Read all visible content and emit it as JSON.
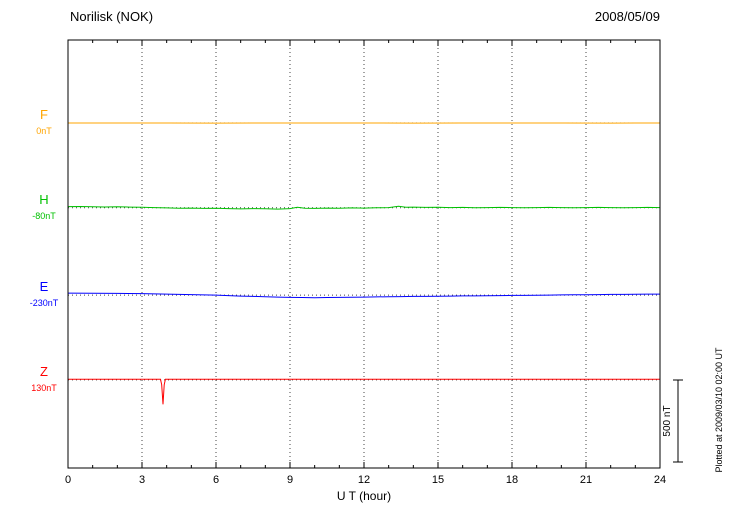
{
  "header": {
    "title": "Norilisk (NOK)",
    "date": "2008/05/09"
  },
  "chart_data": {
    "type": "line",
    "title": "Norilisk (NOK)",
    "date_label": "2008/05/09",
    "xlabel": "U T (hour)",
    "xlim": [
      0,
      24
    ],
    "x_ticks": [
      0,
      3,
      6,
      9,
      12,
      15,
      18,
      21,
      24
    ],
    "x_minor_step": 1,
    "grid": "dotted vertical lines at major ticks; dotted horizontal line at each trace baseline",
    "legend_position": "left margin, one colored label per trace",
    "scale_bar": {
      "label": "500 nT",
      "nT": 500
    },
    "plotted_at": "Plotted at 2009/03/10 02:00 UT",
    "series": [
      {
        "name": "F",
        "color": "#FFA500",
        "offset_label": "0nT",
        "baseline_frac": 0.194,
        "points": [
          [
            0,
            0
          ],
          [
            2,
            0.5
          ],
          [
            4,
            0
          ],
          [
            6,
            -0.5
          ],
          [
            8,
            0
          ],
          [
            10,
            0.5
          ],
          [
            12,
            0
          ],
          [
            14,
            -0.5
          ],
          [
            16,
            0
          ],
          [
            18,
            0.5
          ],
          [
            20,
            0
          ],
          [
            22,
            -0.5
          ],
          [
            24,
            0
          ]
        ]
      },
      {
        "name": "H",
        "color": "#00C000",
        "offset_label": "-80nT",
        "baseline_frac": 0.392,
        "points": [
          [
            0,
            7
          ],
          [
            0.5,
            8
          ],
          [
            1,
            6
          ],
          [
            1.5,
            5
          ],
          [
            2,
            6
          ],
          [
            2.5,
            4
          ],
          [
            3,
            3
          ],
          [
            3.5,
            1
          ],
          [
            4,
            -1
          ],
          [
            4.5,
            -3
          ],
          [
            5,
            -2
          ],
          [
            5.5,
            -4
          ],
          [
            6,
            -3
          ],
          [
            6.5,
            -5
          ],
          [
            7,
            -7
          ],
          [
            7.5,
            -5
          ],
          [
            8,
            -6
          ],
          [
            8.5,
            -8
          ],
          [
            9,
            -5
          ],
          [
            9.3,
            3
          ],
          [
            9.6,
            -3
          ],
          [
            10,
            -4
          ],
          [
            10.5,
            -2
          ],
          [
            11,
            -3
          ],
          [
            11.5,
            -1
          ],
          [
            12,
            -2
          ],
          [
            12.5,
            0
          ],
          [
            13,
            1
          ],
          [
            13.4,
            9
          ],
          [
            13.7,
            3
          ],
          [
            14,
            4
          ],
          [
            14.5,
            2
          ],
          [
            15,
            3
          ],
          [
            15.5,
            1
          ],
          [
            16,
            2
          ],
          [
            16.5,
            0
          ],
          [
            17,
            1
          ],
          [
            17.5,
            2
          ],
          [
            18,
            1
          ],
          [
            18.5,
            0
          ],
          [
            19,
            1
          ],
          [
            19.5,
            2
          ],
          [
            20,
            1
          ],
          [
            20.5,
            0
          ],
          [
            21,
            1
          ],
          [
            21.5,
            2
          ],
          [
            22,
            1
          ],
          [
            22.5,
            0
          ],
          [
            23,
            1
          ],
          [
            23.5,
            2
          ],
          [
            24,
            1
          ]
        ]
      },
      {
        "name": "E",
        "color": "#0000FF",
        "offset_label": "-230nT",
        "baseline_frac": 0.596,
        "points": [
          [
            0,
            12
          ],
          [
            1,
            11
          ],
          [
            2,
            10
          ],
          [
            3,
            9
          ],
          [
            4,
            6
          ],
          [
            5,
            3
          ],
          [
            6,
            0
          ],
          [
            6.5,
            -3
          ],
          [
            7,
            -6
          ],
          [
            7.5,
            -8
          ],
          [
            8,
            -10
          ],
          [
            8.5,
            -12
          ],
          [
            9,
            -14
          ],
          [
            9.5,
            -15
          ],
          [
            10,
            -16
          ],
          [
            10.5,
            -15
          ],
          [
            11,
            -14
          ],
          [
            11.5,
            -13
          ],
          [
            12,
            -12
          ],
          [
            12.5,
            -11
          ],
          [
            13,
            -10
          ],
          [
            13.5,
            -9
          ],
          [
            14,
            -8
          ],
          [
            14.5,
            -8
          ],
          [
            15,
            -7
          ],
          [
            15.5,
            -6
          ],
          [
            16,
            -5
          ],
          [
            16.5,
            -5
          ],
          [
            17,
            -4
          ],
          [
            17.5,
            -3
          ],
          [
            18,
            -2
          ],
          [
            18.5,
            -2
          ],
          [
            19,
            -1
          ],
          [
            19.5,
            0
          ],
          [
            20,
            1
          ],
          [
            20.5,
            2
          ],
          [
            21,
            2
          ],
          [
            21.5,
            3
          ],
          [
            22,
            4
          ],
          [
            22.5,
            4
          ],
          [
            23,
            5
          ],
          [
            23.5,
            6
          ],
          [
            24,
            6
          ]
        ]
      },
      {
        "name": "Z",
        "color": "#FF0000",
        "offset_label": "130nT",
        "baseline_frac": 0.794,
        "points": [
          [
            0,
            4
          ],
          [
            0.5,
            3
          ],
          [
            1,
            3
          ],
          [
            1.5,
            4
          ],
          [
            2,
            3
          ],
          [
            2.5,
            3
          ],
          [
            3,
            4
          ],
          [
            3.5,
            3
          ],
          [
            3.75,
            3
          ],
          [
            3.8,
            -30
          ],
          [
            3.85,
            -150
          ],
          [
            3.9,
            -30
          ],
          [
            3.95,
            3
          ],
          [
            4.5,
            3
          ],
          [
            5,
            4
          ],
          [
            6,
            3
          ],
          [
            7,
            3
          ],
          [
            8,
            4
          ],
          [
            9,
            3
          ],
          [
            9.5,
            4
          ],
          [
            10,
            3
          ],
          [
            11,
            3
          ],
          [
            12,
            4
          ],
          [
            13,
            3
          ],
          [
            14,
            3
          ],
          [
            15,
            4
          ],
          [
            16,
            3
          ],
          [
            17,
            3
          ],
          [
            18,
            4
          ],
          [
            19,
            3
          ],
          [
            20,
            3
          ],
          [
            21,
            3
          ],
          [
            22,
            4
          ],
          [
            23,
            3
          ],
          [
            24,
            3
          ]
        ]
      }
    ]
  }
}
